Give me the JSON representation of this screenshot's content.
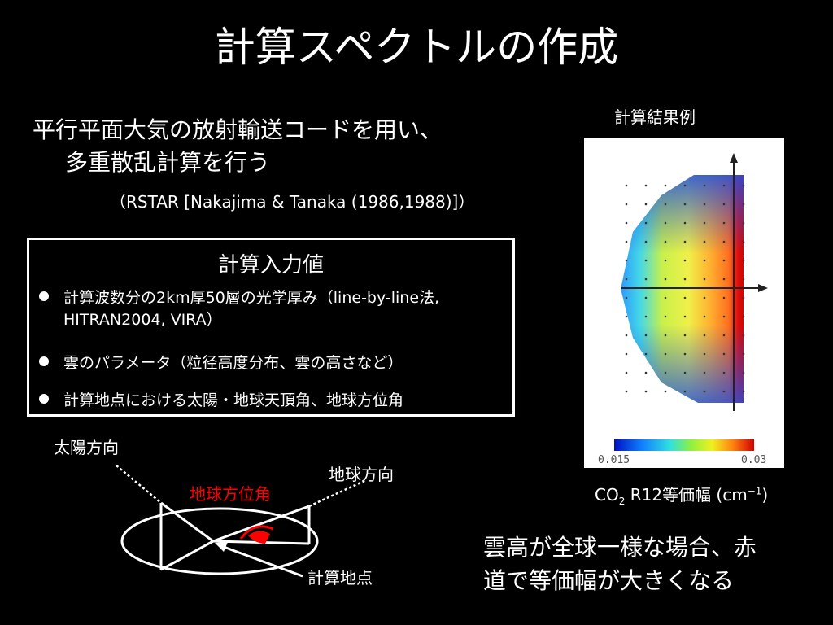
{
  "slide": {
    "title": "計算スペクトルの作成",
    "lead_line1": "平行平面大気の放射輸送コードを用い、",
    "lead_line2": "多重散乱計算を行う",
    "reference": "（RSTAR [Nakajima & Tanaka (1986,1988)]）"
  },
  "input_box": {
    "title": "計算入力値",
    "bullets": [
      "計算波数分の2km厚50層の光学厚み（line-by-line法, HITRAN2004, VIRA）",
      "雲のパラメータ（粒径高度分布、雲の高さなど）",
      "計算地点における太陽・地球天頂角、地球方位角"
    ]
  },
  "diagram": {
    "sun_direction": "太陽方向",
    "earth_direction": "地球方向",
    "earth_azimuth": "地球方位角",
    "calc_point": "計算地点",
    "highlight_color": "#ff0000"
  },
  "result": {
    "label": "計算結果例",
    "colorbar_min": "0.015",
    "colorbar_max": "0.03",
    "caption_prefix": "CO",
    "caption_sub": "2",
    "caption_main": " R12等価幅 (cm",
    "caption_sup": "−1",
    "caption_end": ")"
  },
  "conclusion": {
    "line1": "雲高が全球一様な場合、赤",
    "line2": "道で等価幅が大きくなる"
  }
}
